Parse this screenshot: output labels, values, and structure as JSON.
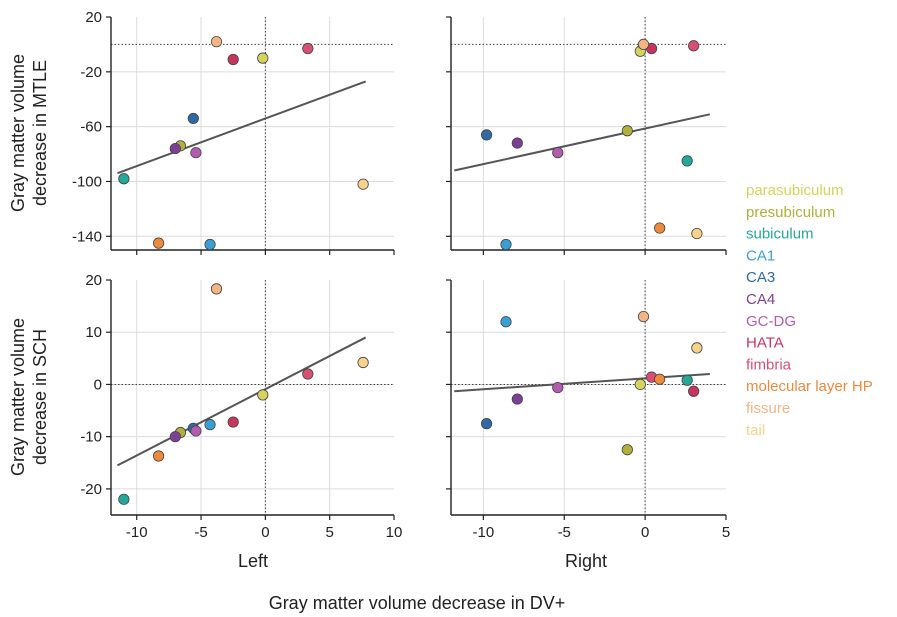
{
  "figure": {
    "xlabel": "Gray matter volume decrease in DV+",
    "row_labels": [
      [
        "Gray matter volume",
        "decrease in MTLE"
      ],
      [
        "Gray matter volume",
        "decrease in SCH"
      ]
    ],
    "col_labels": [
      "Left",
      "Right"
    ]
  },
  "legend": [
    {
      "name": "parasubiculum",
      "color": "#d4d45c"
    },
    {
      "name": "presubiculum",
      "color": "#b0b03a"
    },
    {
      "name": "subiculum",
      "color": "#22a99a"
    },
    {
      "name": "CA1",
      "color": "#39a0d6"
    },
    {
      "name": "CA3",
      "color": "#2f6aa8"
    },
    {
      "name": "CA4",
      "color": "#7d3f96"
    },
    {
      "name": "GC-DG",
      "color": "#b45bb0"
    },
    {
      "name": "HATA",
      "color": "#c8345e"
    },
    {
      "name": "fimbria",
      "color": "#d94f73"
    },
    {
      "name": "molecular layer HP",
      "color": "#ee8a3c"
    },
    {
      "name": "fissure",
      "color": "#f5b483"
    },
    {
      "name": "tail",
      "color": "#f6d28a"
    }
  ],
  "chart_data": [
    {
      "type": "scatter",
      "title": "",
      "xlabel": "Left",
      "ylabel": "Gray matter volume decrease in MTLE",
      "xlim": [
        -12,
        10
      ],
      "ylim": [
        -150,
        20
      ],
      "xticks": [
        -10,
        -5,
        0,
        5,
        10
      ],
      "yticks": [
        20,
        -20,
        -60,
        -100,
        -140
      ],
      "show_xticks": false,
      "show_yticks": true,
      "grid": true,
      "reflines": {
        "x": 0,
        "y": 0
      },
      "fit": {
        "x": [
          -11.5,
          7.8
        ],
        "y": [
          -94,
          -27
        ]
      },
      "points": [
        {
          "structure": "parasubiculum",
          "x": -0.2,
          "y": -10
        },
        {
          "structure": "presubiculum",
          "x": -6.6,
          "y": -74
        },
        {
          "structure": "subiculum",
          "x": -11.0,
          "y": -98
        },
        {
          "structure": "CA1",
          "x": -4.3,
          "y": -146
        },
        {
          "structure": "CA3",
          "x": -5.6,
          "y": -54
        },
        {
          "structure": "CA4",
          "x": -7.0,
          "y": -76
        },
        {
          "structure": "GC-DG",
          "x": -5.4,
          "y": -79
        },
        {
          "structure": "HATA",
          "x": -2.5,
          "y": -11
        },
        {
          "structure": "fimbria",
          "x": 3.3,
          "y": -3
        },
        {
          "structure": "molecular layer HP",
          "x": -8.3,
          "y": -145
        },
        {
          "structure": "fissure",
          "x": -3.8,
          "y": 2
        },
        {
          "structure": "tail",
          "x": 7.6,
          "y": -102
        }
      ]
    },
    {
      "type": "scatter",
      "title": "",
      "xlabel": "Right",
      "ylabel": "Gray matter volume decrease in MTLE",
      "xlim": [
        -12,
        5
      ],
      "ylim": [
        -150,
        20
      ],
      "xticks": [
        -10,
        -5,
        0,
        5
      ],
      "yticks": [
        20,
        -20,
        -60,
        -100,
        -140
      ],
      "show_xticks": false,
      "show_yticks": false,
      "grid": true,
      "reflines": {
        "x": 0,
        "y": 0
      },
      "fit": {
        "x": [
          -11.8,
          4.0
        ],
        "y": [
          -92,
          -51
        ]
      },
      "points": [
        {
          "structure": "parasubiculum",
          "x": -0.3,
          "y": -5
        },
        {
          "structure": "presubiculum",
          "x": -1.1,
          "y": -63
        },
        {
          "structure": "subiculum",
          "x": 2.6,
          "y": -85
        },
        {
          "structure": "CA1",
          "x": -8.6,
          "y": -146
        },
        {
          "structure": "CA3",
          "x": -9.8,
          "y": -66
        },
        {
          "structure": "CA4",
          "x": -7.9,
          "y": -72
        },
        {
          "structure": "GC-DG",
          "x": -5.4,
          "y": -79
        },
        {
          "structure": "HATA",
          "x": 0.4,
          "y": -3
        },
        {
          "structure": "fimbria",
          "x": 3.0,
          "y": -1
        },
        {
          "structure": "molecular layer HP",
          "x": 0.9,
          "y": -134
        },
        {
          "structure": "fissure",
          "x": -0.1,
          "y": 0
        },
        {
          "structure": "tail",
          "x": 3.2,
          "y": -138
        }
      ]
    },
    {
      "type": "scatter",
      "title": "",
      "xlabel": "Left",
      "ylabel": "Gray matter volume decrease in SCH",
      "xlim": [
        -12,
        10
      ],
      "ylim": [
        -25,
        20
      ],
      "xticks": [
        -10,
        -5,
        0,
        5,
        10
      ],
      "yticks": [
        20,
        10,
        0,
        -10,
        -20
      ],
      "show_xticks": true,
      "show_yticks": true,
      "grid": true,
      "reflines": {
        "x": 0,
        "y": 0
      },
      "fit": {
        "x": [
          -11.5,
          7.8
        ],
        "y": [
          -15.5,
          9
        ]
      },
      "points": [
        {
          "structure": "parasubiculum",
          "x": -0.2,
          "y": -2
        },
        {
          "structure": "presubiculum",
          "x": -6.6,
          "y": -9.2
        },
        {
          "structure": "subiculum",
          "x": -11.0,
          "y": -22
        },
        {
          "structure": "CA1",
          "x": -4.3,
          "y": -7.7
        },
        {
          "structure": "CA3",
          "x": -5.6,
          "y": -8.4
        },
        {
          "structure": "CA4",
          "x": -7.0,
          "y": -10
        },
        {
          "structure": "GC-DG",
          "x": -5.4,
          "y": -8.9
        },
        {
          "structure": "HATA",
          "x": -2.5,
          "y": -7.2
        },
        {
          "structure": "fimbria",
          "x": 3.3,
          "y": 2
        },
        {
          "structure": "molecular layer HP",
          "x": -8.3,
          "y": -13.7
        },
        {
          "structure": "fissure",
          "x": -3.8,
          "y": 18.3
        },
        {
          "structure": "tail",
          "x": 7.6,
          "y": 4.2
        }
      ]
    },
    {
      "type": "scatter",
      "title": "",
      "xlabel": "Right",
      "ylabel": "Gray matter volume decrease in SCH",
      "xlim": [
        -12,
        5
      ],
      "ylim": [
        -25,
        20
      ],
      "xticks": [
        -10,
        -5,
        0,
        5
      ],
      "yticks": [
        20,
        10,
        0,
        -10,
        -20
      ],
      "show_xticks": true,
      "show_yticks": false,
      "grid": true,
      "reflines": {
        "x": 0,
        "y": 0
      },
      "fit": {
        "x": [
          -11.8,
          4.0
        ],
        "y": [
          -1.3,
          2.0
        ]
      },
      "points": [
        {
          "structure": "parasubiculum",
          "x": -0.3,
          "y": 0
        },
        {
          "structure": "presubiculum",
          "x": -1.1,
          "y": -12.5
        },
        {
          "structure": "subiculum",
          "x": 2.6,
          "y": 0.8
        },
        {
          "structure": "CA1",
          "x": -8.6,
          "y": 12
        },
        {
          "structure": "CA3",
          "x": -9.8,
          "y": -7.5
        },
        {
          "structure": "CA4",
          "x": -7.9,
          "y": -2.8
        },
        {
          "structure": "GC-DG",
          "x": -5.4,
          "y": -0.6
        },
        {
          "structure": "HATA",
          "x": 3.0,
          "y": -1.3
        },
        {
          "structure": "fimbria",
          "x": 0.4,
          "y": 1.4
        },
        {
          "structure": "molecular layer HP",
          "x": 0.9,
          "y": 1
        },
        {
          "structure": "fissure",
          "x": -0.1,
          "y": 13
        },
        {
          "structure": "tail",
          "x": 3.2,
          "y": 7
        }
      ]
    }
  ]
}
